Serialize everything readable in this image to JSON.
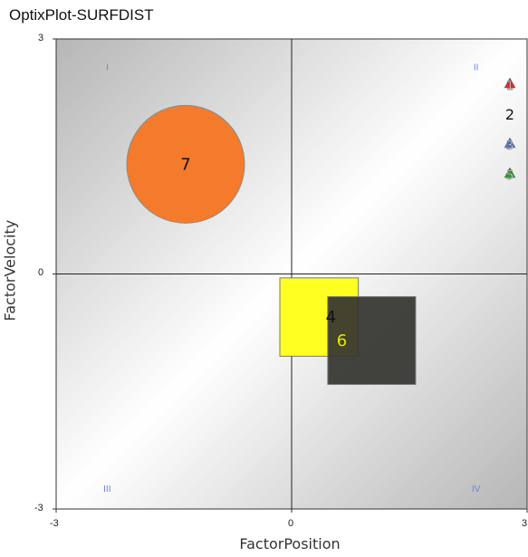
{
  "title": "OptixPlot-SURFDIST",
  "chart_data": {
    "type": "scatter",
    "xlabel": "FactorPosition",
    "ylabel": "FactorVelocity",
    "xlim": [
      -3,
      3
    ],
    "ylim": [
      -3,
      3
    ],
    "x_ticks": [
      "-3",
      "0",
      "3"
    ],
    "y_ticks": [
      "3",
      "0",
      "-3"
    ],
    "quadrant_labels": [
      "I",
      "II",
      "III",
      "IV"
    ],
    "background": "diagonal gradient, gray corners to white center",
    "points": [
      {
        "label": "7",
        "shape": "circle",
        "x": -1.35,
        "y": 1.4,
        "size": 1.5,
        "color": "#f47b2c"
      },
      {
        "label": "4",
        "shape": "square",
        "x": 0.35,
        "y": -0.55,
        "size": 1.0,
        "color": "#ffff22"
      },
      {
        "label": "6",
        "shape": "square",
        "x": 1.02,
        "y": -0.85,
        "size": 1.12,
        "color": "#333330"
      }
    ],
    "legend": {
      "placement": "top-right",
      "items": [
        {
          "label": "1",
          "shape": "triangle",
          "color": "#d62a2a"
        },
        {
          "label": "2",
          "shape": "none",
          "color": "#111111"
        },
        {
          "label": "3",
          "shape": "triangle",
          "color": "#5577cc"
        },
        {
          "label": "5",
          "shape": "triangle",
          "color": "#2ea02e"
        }
      ]
    }
  }
}
